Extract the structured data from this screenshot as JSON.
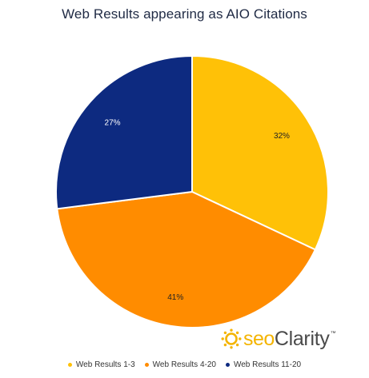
{
  "chart_data": {
    "type": "pie",
    "title": "Web Results appearing as AIO Citations",
    "slices": [
      {
        "name": "Web Results 1-3",
        "value": 32,
        "label": "32%",
        "color": "#FFC107"
      },
      {
        "name": "Web Results 4-20",
        "value": 41,
        "label": "41%",
        "color": "#FF8C00"
      },
      {
        "name": "Web Results 11-20",
        "value": 27,
        "label": "27%",
        "color": "#0D2A80"
      }
    ],
    "legend_position": "bottom"
  },
  "logo": {
    "seo": "seo",
    "clarity": "Clarity",
    "tm": "™"
  }
}
